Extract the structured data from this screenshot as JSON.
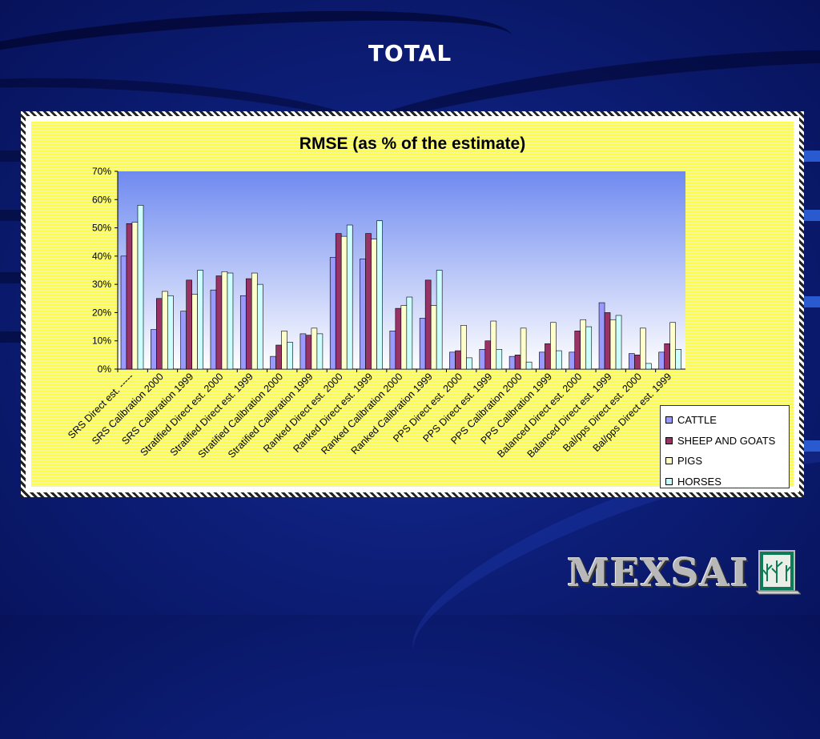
{
  "slide": {
    "title": "TOTAL",
    "logo_text": "MEXSAI"
  },
  "colors": {
    "cattle": "#9999ff",
    "sheep_and_goats": "#993366",
    "pigs": "#ffffcc",
    "horses": "#ccffff",
    "plot_top": "#6f8af0",
    "plot_bottom": "#ffffff"
  },
  "chart_data": {
    "type": "bar",
    "title": "RMSE (as % of the estimate)",
    "ylim": [
      0,
      70
    ],
    "yticks": [
      "0%",
      "10%",
      "20%",
      "30%",
      "40%",
      "50%",
      "60%",
      "70%"
    ],
    "legend_position": "bottom-right",
    "categories": [
      "SRS Direct est. -----",
      "SRS Calibration 2000",
      "SRS Calibration 1999",
      "Stratified Direct est. 2000",
      "Stratified Direct est. 1999",
      "Stratified Calibration 2000",
      "Stratified Calibration 1999",
      "Ranked Direct est. 2000",
      "Ranked Direct est. 1999",
      "Ranked Calibration 2000",
      "Ranked Calibration 1999",
      "PPS Direct est. 2000",
      "PPS Direct est. 1999",
      "PPS Calibration 2000",
      "PPS Calibration 1999",
      "Balanced Direct est. 2000",
      "Balanced Direct est. 1999",
      "Bal/pps Direct est. 2000",
      "Bal/pps Direct est. 1999"
    ],
    "series": [
      {
        "name": "CATTLE",
        "values": [
          40,
          14,
          20.5,
          28,
          26,
          4.5,
          12.5,
          39.5,
          39,
          13.5,
          18,
          6,
          7,
          4.5,
          6,
          6,
          23.5,
          5.5,
          6
        ]
      },
      {
        "name": "SHEEP AND GOATS",
        "values": [
          51.5,
          25,
          31.5,
          33,
          32,
          8.5,
          12,
          48,
          48,
          21.5,
          31.5,
          6.5,
          10,
          5,
          9,
          13.5,
          20,
          5,
          9
        ]
      },
      {
        "name": "PIGS",
        "values": [
          52,
          27.5,
          26.5,
          34.5,
          34,
          13.5,
          14.5,
          47,
          46,
          22.5,
          22.5,
          15.5,
          17,
          14.5,
          16.5,
          17.5,
          17.5,
          14.5,
          16.5
        ]
      },
      {
        "name": "HORSES",
        "values": [
          58,
          26,
          35,
          34,
          30,
          9.5,
          12.5,
          51,
          52.5,
          25.5,
          35,
          4,
          7,
          2.5,
          6.5,
          15,
          19,
          2,
          7
        ]
      }
    ]
  }
}
